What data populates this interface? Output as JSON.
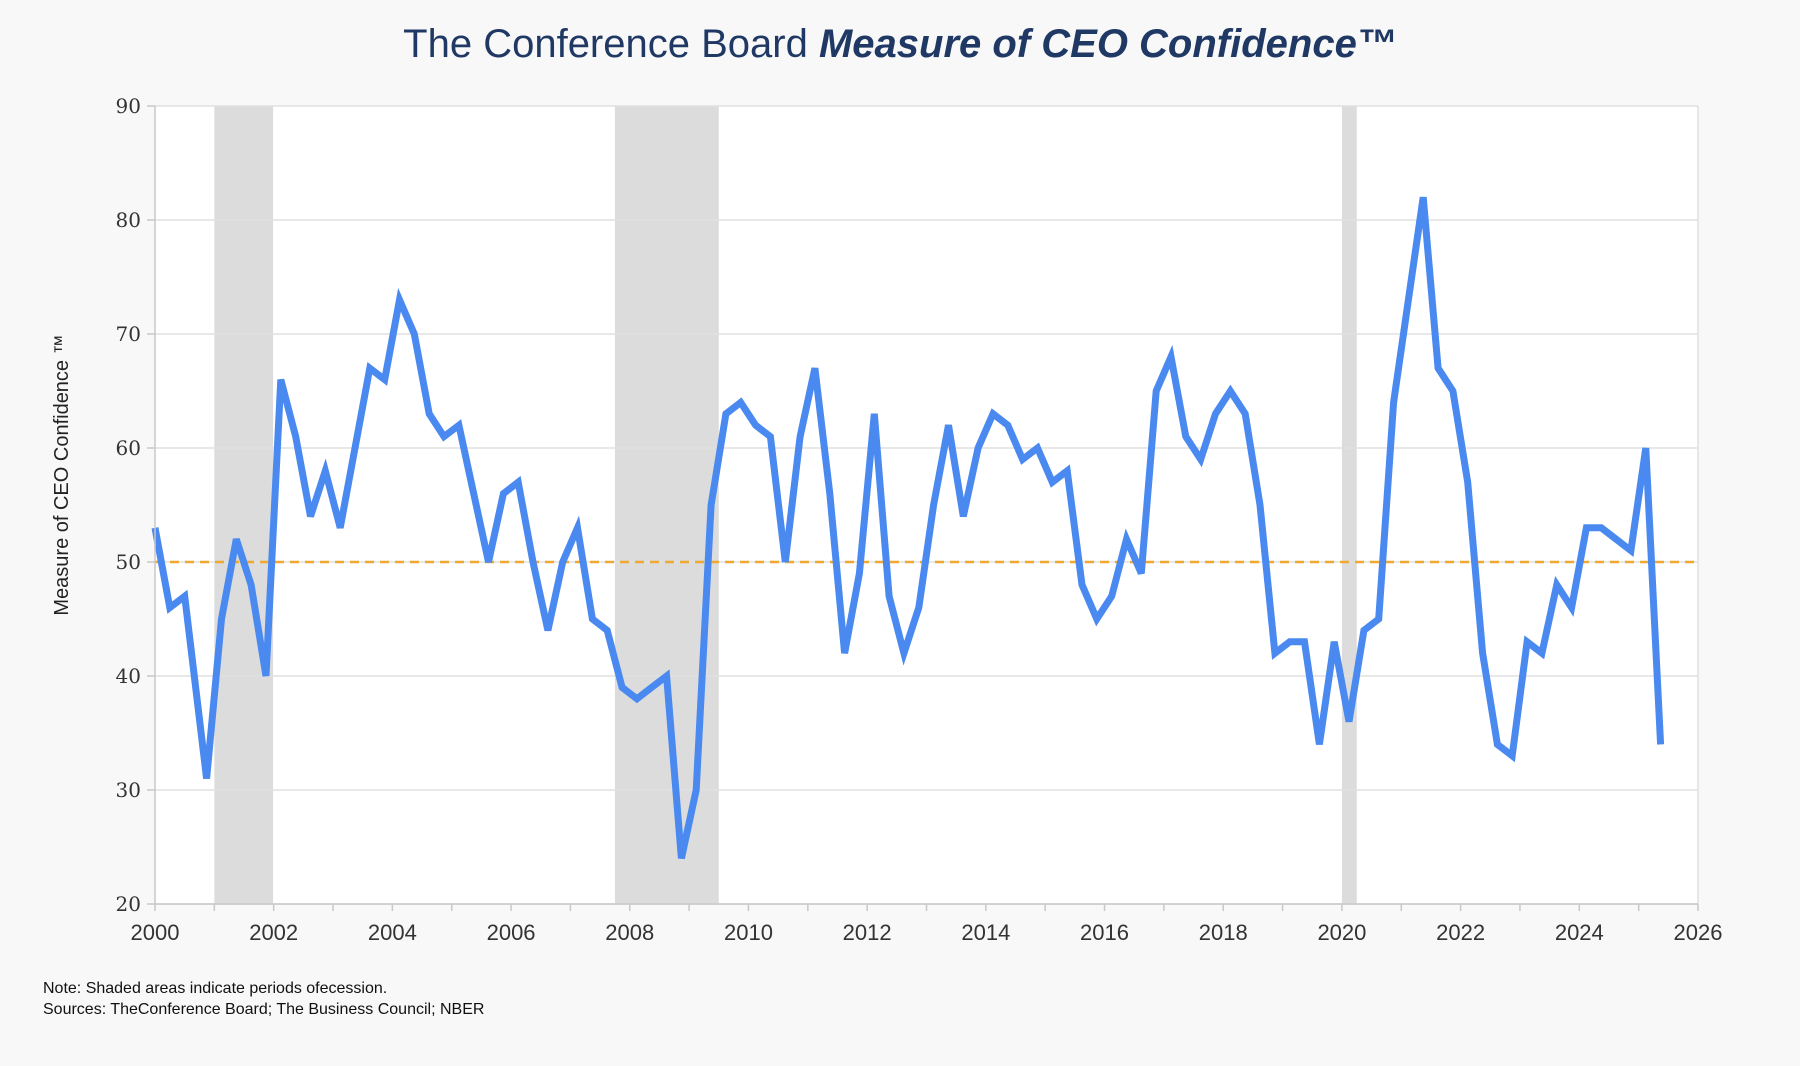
{
  "title": {
    "prefix": "The Conference Board ",
    "emphasis": "Measure of CEO Confidence™"
  },
  "notes": {
    "line1": "Note: Shaded areas indicate periods ofecession.",
    "line2": "Sources: TheConference Board; The Business Council; NBER"
  },
  "colors": {
    "line": "#4a8af0",
    "reference": "#f0a830",
    "recession": "#dcdcdc",
    "grid": "#e0e0e0",
    "title": "#1f3864"
  },
  "chart_data": {
    "type": "line",
    "title": "The Conference Board Measure of CEO Confidence™",
    "ylabel": "Measure of CEO Confidence ™",
    "xlabel": "",
    "xlim": [
      2000,
      2026
    ],
    "ylim": [
      20,
      90
    ],
    "xticks": [
      2000,
      2002,
      2004,
      2006,
      2008,
      2010,
      2012,
      2014,
      2016,
      2018,
      2020,
      2022,
      2024,
      2026
    ],
    "yticks": [
      20,
      30,
      40,
      50,
      60,
      70,
      80,
      90
    ],
    "grid": true,
    "legend": "none",
    "reference_line": 50,
    "recessions": [
      [
        2001.0,
        2001.99
      ],
      [
        2007.75,
        2009.5
      ],
      [
        2020.0,
        2020.25
      ]
    ],
    "series": [
      {
        "values": [
          [
            2000.0,
            53
          ],
          [
            2000.25,
            46
          ],
          [
            2000.5,
            47
          ],
          [
            2000.87,
            31
          ],
          [
            2001.12,
            45
          ],
          [
            2001.37,
            52
          ],
          [
            2001.62,
            48
          ],
          [
            2001.87,
            40
          ],
          [
            2002.12,
            66
          ],
          [
            2002.37,
            61
          ],
          [
            2002.62,
            54
          ],
          [
            2002.87,
            58
          ],
          [
            2003.12,
            53
          ],
          [
            2003.37,
            60
          ],
          [
            2003.62,
            67
          ],
          [
            2003.87,
            66
          ],
          [
            2004.12,
            73
          ],
          [
            2004.37,
            70
          ],
          [
            2004.62,
            63
          ],
          [
            2004.87,
            61
          ],
          [
            2005.12,
            62
          ],
          [
            2005.37,
            56
          ],
          [
            2005.62,
            50
          ],
          [
            2005.87,
            56
          ],
          [
            2006.12,
            57
          ],
          [
            2006.37,
            50
          ],
          [
            2006.62,
            44
          ],
          [
            2006.87,
            50
          ],
          [
            2007.12,
            53
          ],
          [
            2007.37,
            45
          ],
          [
            2007.62,
            44
          ],
          [
            2007.87,
            39
          ],
          [
            2008.12,
            38
          ],
          [
            2008.37,
            39
          ],
          [
            2008.62,
            40
          ],
          [
            2008.87,
            24
          ],
          [
            2009.12,
            30
          ],
          [
            2009.37,
            55
          ],
          [
            2009.62,
            63
          ],
          [
            2009.87,
            64
          ],
          [
            2010.12,
            62
          ],
          [
            2010.37,
            61
          ],
          [
            2010.62,
            50
          ],
          [
            2010.87,
            61
          ],
          [
            2011.12,
            67
          ],
          [
            2011.37,
            56
          ],
          [
            2011.62,
            42
          ],
          [
            2011.87,
            49
          ],
          [
            2012.12,
            63
          ],
          [
            2012.37,
            47
          ],
          [
            2012.62,
            42
          ],
          [
            2012.87,
            46
          ],
          [
            2013.12,
            55
          ],
          [
            2013.37,
            62
          ],
          [
            2013.62,
            54
          ],
          [
            2013.87,
            60
          ],
          [
            2014.12,
            63
          ],
          [
            2014.37,
            62
          ],
          [
            2014.62,
            59
          ],
          [
            2014.87,
            60
          ],
          [
            2015.12,
            57
          ],
          [
            2015.37,
            58
          ],
          [
            2015.62,
            48
          ],
          [
            2015.87,
            45
          ],
          [
            2016.12,
            47
          ],
          [
            2016.37,
            52
          ],
          [
            2016.62,
            49
          ],
          [
            2016.87,
            65
          ],
          [
            2017.12,
            68
          ],
          [
            2017.37,
            61
          ],
          [
            2017.62,
            59
          ],
          [
            2017.87,
            63
          ],
          [
            2018.12,
            65
          ],
          [
            2018.37,
            63
          ],
          [
            2018.62,
            55
          ],
          [
            2018.87,
            42
          ],
          [
            2019.12,
            43
          ],
          [
            2019.37,
            43
          ],
          [
            2019.62,
            34
          ],
          [
            2019.87,
            43
          ],
          [
            2020.12,
            36
          ],
          [
            2020.37,
            44
          ],
          [
            2020.62,
            45
          ],
          [
            2020.87,
            64
          ],
          [
            2021.12,
            73
          ],
          [
            2021.37,
            82
          ],
          [
            2021.62,
            67
          ],
          [
            2021.87,
            65
          ],
          [
            2022.12,
            57
          ],
          [
            2022.37,
            42
          ],
          [
            2022.62,
            34
          ],
          [
            2022.87,
            33
          ],
          [
            2023.12,
            43
          ],
          [
            2023.37,
            42
          ],
          [
            2023.62,
            48
          ],
          [
            2023.87,
            46
          ],
          [
            2024.12,
            53
          ],
          [
            2024.37,
            53
          ],
          [
            2024.62,
            52
          ],
          [
            2024.87,
            51
          ],
          [
            2025.12,
            60
          ],
          [
            2025.37,
            34
          ]
        ]
      }
    ]
  }
}
